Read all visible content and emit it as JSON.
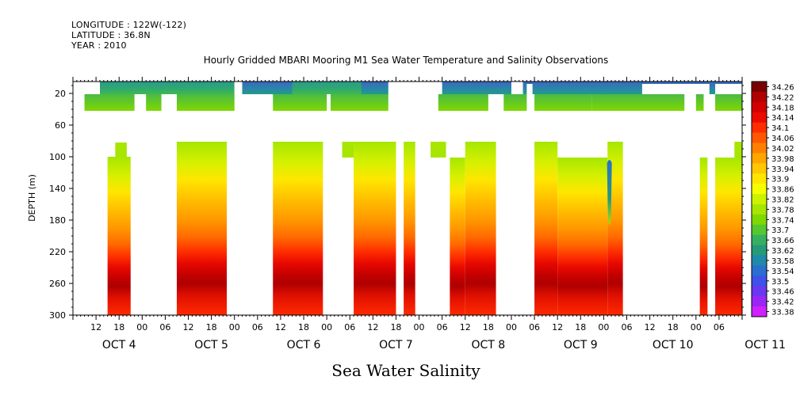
{
  "header": {
    "longitude": "LONGITUDE : 122W(-122)",
    "latitude": "LATITUDE : 36.8N",
    "year": "YEAR : 2010"
  },
  "chart_data": {
    "type": "heatmap",
    "title": "Hourly Gridded MBARI Mooring M1 Sea Water Temperature and Salinity Observations",
    "xlabel": "Sea Water Salinity",
    "ylabel": "DEPTH (m)",
    "ylim": [
      300,
      5
    ],
    "y_ticks": [
      20,
      60,
      100,
      140,
      180,
      220,
      260,
      300
    ],
    "x_range_hours": [
      0,
      174
    ],
    "x_hour_tick_labels": [
      "12",
      "18",
      "00",
      "06",
      "12",
      "18",
      "00",
      "06",
      "12",
      "18",
      "00",
      "06",
      "12",
      "18",
      "00",
      "06",
      "12",
      "18",
      "00",
      "06",
      "12",
      "18",
      "00",
      "06",
      "12",
      "18",
      "00",
      "06"
    ],
    "date_labels": [
      "OCT  4",
      "OCT  5",
      "OCT  6",
      "OCT  7",
      "OCT  8",
      "OCT  9",
      "OCT 10",
      "OCT 11"
    ],
    "colorbar_levels": [
      "34.26",
      "34.22",
      "34.18",
      "34.14",
      "34.1",
      "34.06",
      "34.02",
      "33.98",
      "33.94",
      "33.9",
      "33.86",
      "33.82",
      "33.78",
      "33.74",
      "33.7",
      "33.66",
      "33.62",
      "33.58",
      "33.54",
      "33.5",
      "33.46",
      "33.42",
      "33.38"
    ],
    "colorbar_colors": [
      "#7a0000",
      "#b10000",
      "#d20000",
      "#ea0a00",
      "#ff2d00",
      "#ff5800",
      "#ff8000",
      "#ffa600",
      "#ffc800",
      "#ffe600",
      "#f6ff00",
      "#cdf200",
      "#a6e600",
      "#7fd800",
      "#55c830",
      "#36b060",
      "#249a7a",
      "#2088a8",
      "#2a6ed0",
      "#4050e8",
      "#6a38f0",
      "#9a26f4",
      "#d020ff"
    ],
    "colorbar_min": 33.38,
    "colorbar_max": 34.26
  }
}
